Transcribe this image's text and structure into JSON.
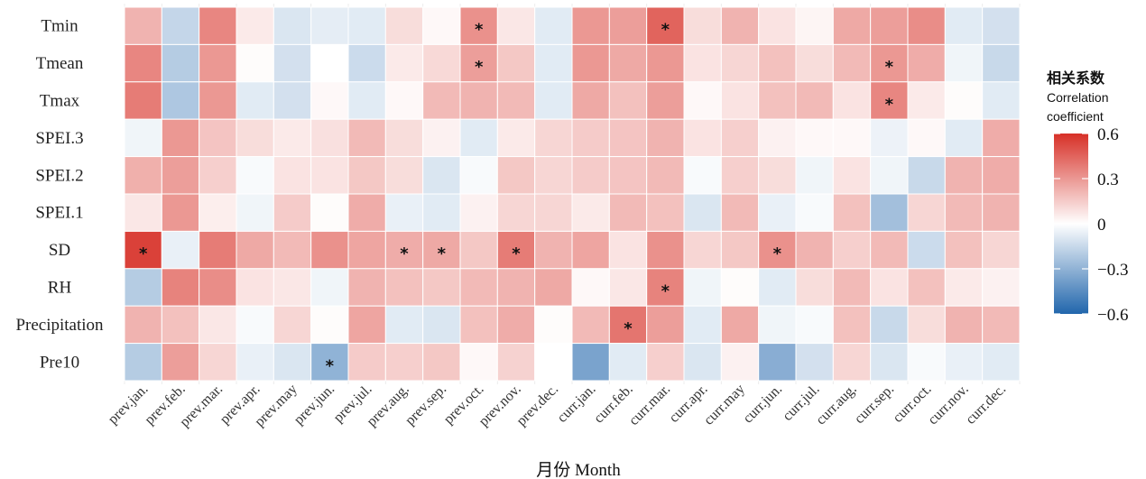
{
  "chart_data": {
    "type": "heatmap",
    "xlabel": "月份 Month",
    "legend": {
      "title_cn": "相关系数",
      "title_en_line1": "Correlation",
      "title_en_line2": "coefficient",
      "ticks": [
        0.6,
        0.3,
        0,
        -0.3,
        -0.6
      ],
      "tick_labels": [
        "0.6",
        "0.3",
        "0",
        "−0.3",
        "−0.6"
      ],
      "range": [
        -0.6,
        0.6
      ],
      "colors": {
        "low": "#2166ac",
        "mid": "#ffffff",
        "high": "#d73027"
      },
      "placement": "right"
    },
    "significance_marker": "*",
    "rows": [
      "Tmin",
      "Tmean",
      "Tmax",
      "SPEI.3",
      "SPEI.2",
      "SPEI.1",
      "SD",
      "RH",
      "Precipitation",
      "Pre10"
    ],
    "columns": [
      "prev.jan.",
      "prev.feb.",
      "prev.mar.",
      "prev.apr.",
      "prev.may",
      "prev.jun.",
      "prev.jul.",
      "prev.aug.",
      "prev.sep.",
      "prev.oct.",
      "prev.nov.",
      "prev.dec.",
      "curr.jan.",
      "curr.feb.",
      "curr.mar.",
      "curr.apr.",
      "curr.may",
      "curr.jun.",
      "curr.jul.",
      "curr.aug.",
      "curr.sep.",
      "curr.oct.",
      "curr.nov.",
      "curr.dec."
    ],
    "values": [
      [
        0.22,
        -0.16,
        0.35,
        0.06,
        -0.1,
        -0.07,
        -0.08,
        0.1,
        0.02,
        0.32,
        0.07,
        -0.08,
        0.3,
        0.28,
        0.45,
        0.1,
        0.22,
        0.08,
        0.03,
        0.25,
        0.28,
        0.33,
        -0.08,
        -0.12
      ],
      [
        0.35,
        -0.2,
        0.3,
        0.01,
        -0.12,
        0.0,
        -0.14,
        0.06,
        0.11,
        0.28,
        0.16,
        -0.08,
        0.3,
        0.25,
        0.3,
        0.08,
        0.12,
        0.18,
        0.1,
        0.2,
        0.3,
        0.24,
        -0.04,
        -0.15
      ],
      [
        0.38,
        -0.22,
        0.3,
        -0.08,
        -0.12,
        0.02,
        -0.08,
        0.02,
        0.2,
        0.22,
        0.2,
        -0.08,
        0.25,
        0.18,
        0.28,
        0.02,
        0.08,
        0.18,
        0.2,
        0.08,
        0.35,
        0.06,
        0.01,
        -0.08
      ],
      [
        -0.04,
        0.3,
        0.17,
        0.1,
        0.06,
        0.09,
        0.2,
        0.1,
        0.04,
        -0.08,
        0.06,
        0.12,
        0.15,
        0.17,
        0.22,
        0.08,
        0.14,
        0.04,
        0.02,
        0.02,
        -0.05,
        0.02,
        -0.08,
        0.24
      ],
      [
        0.23,
        0.28,
        0.14,
        -0.02,
        0.08,
        0.08,
        0.16,
        0.1,
        -0.1,
        -0.02,
        0.16,
        0.12,
        0.15,
        0.17,
        0.2,
        -0.02,
        0.14,
        0.1,
        -0.04,
        0.08,
        -0.04,
        -0.15,
        0.22,
        0.24
      ],
      [
        0.07,
        0.3,
        0.05,
        -0.04,
        0.15,
        0.01,
        0.24,
        -0.06,
        -0.08,
        0.04,
        0.12,
        0.12,
        0.06,
        0.2,
        0.18,
        -0.1,
        0.2,
        -0.06,
        -0.02,
        0.18,
        -0.25,
        0.12,
        0.2,
        0.22
      ],
      [
        0.55,
        -0.06,
        0.38,
        0.25,
        0.2,
        0.32,
        0.26,
        0.24,
        0.25,
        0.16,
        0.38,
        0.22,
        0.26,
        0.08,
        0.32,
        0.12,
        0.16,
        0.32,
        0.22,
        0.14,
        0.2,
        -0.14,
        0.18,
        0.12
      ],
      [
        -0.2,
        0.36,
        0.33,
        0.08,
        0.07,
        -0.04,
        0.22,
        0.18,
        0.16,
        0.2,
        0.22,
        0.25,
        0.02,
        0.07,
        0.36,
        -0.04,
        0.01,
        -0.08,
        0.1,
        0.2,
        0.08,
        0.18,
        0.06,
        0.04
      ],
      [
        0.22,
        0.18,
        0.07,
        -0.02,
        0.12,
        0.01,
        0.26,
        -0.08,
        -0.1,
        0.18,
        0.24,
        0.01,
        0.2,
        0.4,
        0.28,
        -0.08,
        0.25,
        -0.04,
        -0.02,
        0.18,
        -0.15,
        0.1,
        0.22,
        0.2
      ],
      [
        -0.2,
        0.28,
        0.12,
        -0.06,
        -0.1,
        -0.3,
        0.15,
        0.14,
        0.16,
        0.02,
        0.13,
        0.0,
        -0.36,
        -0.08,
        0.14,
        -0.1,
        0.04,
        -0.32,
        -0.12,
        0.12,
        -0.1,
        -0.02,
        -0.06,
        -0.08
      ]
    ],
    "significant": [
      [
        9,
        0
      ],
      [
        14,
        0
      ],
      [
        9,
        1
      ],
      [
        20,
        1
      ],
      [
        20,
        2
      ],
      [
        0,
        6
      ],
      [
        7,
        6
      ],
      [
        8,
        6
      ],
      [
        10,
        6
      ],
      [
        17,
        6
      ],
      [
        14,
        7
      ],
      [
        13,
        8
      ],
      [
        5,
        9
      ]
    ]
  }
}
